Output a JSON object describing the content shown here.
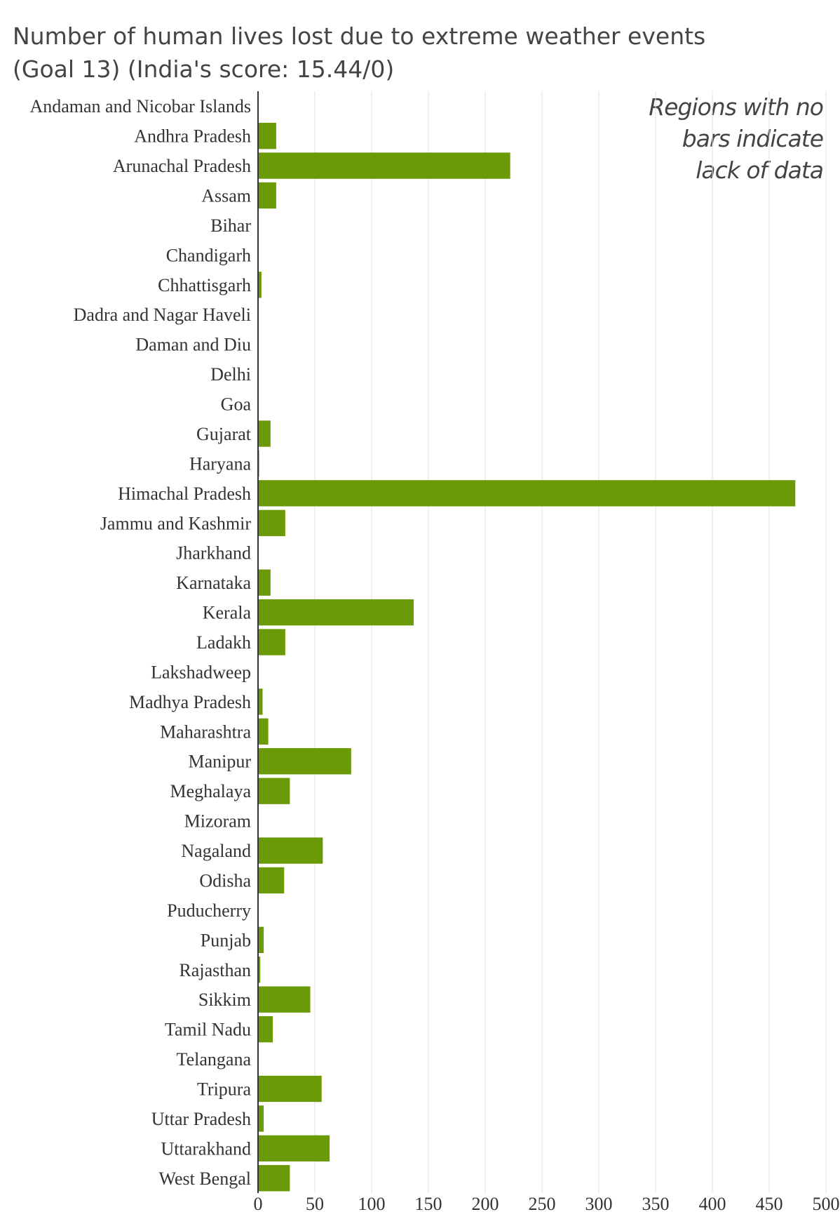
{
  "title_line1": "Number of human lives lost due to extreme weather events",
  "title_line2": "(Goal 13) (India's score: 15.44/0)",
  "note": "Regions with no bars indicate lack of data",
  "colors": {
    "bar": "#6a9a06",
    "grid": "#e0e0e0",
    "axis": "#333333"
  },
  "chart_data": {
    "type": "bar",
    "orientation": "horizontal",
    "title": "Number of human lives lost due to extreme weather events (Goal 13) (India's score: 15.44/0)",
    "xlabel": "",
    "ylabel": "",
    "xlim": [
      0,
      500
    ],
    "xticks": [
      0,
      50,
      100,
      150,
      200,
      250,
      300,
      350,
      400,
      450,
      500
    ],
    "grid": true,
    "categories": [
      "Andaman and Nicobar Islands",
      "Andhra Pradesh",
      "Arunachal Pradesh",
      "Assam",
      "Bihar",
      "Chandigarh",
      "Chhattisgarh",
      "Dadra and Nagar Haveli",
      "Daman and Diu",
      "Delhi",
      "Goa",
      "Gujarat",
      "Haryana",
      "Himachal Pradesh",
      "Jammu and Kashmir",
      "Jharkhand",
      "Karnataka",
      "Kerala",
      "Ladakh",
      "Lakshadweep",
      "Madhya Pradesh",
      "Maharashtra",
      "Manipur",
      "Meghalaya",
      "Mizoram",
      "Nagaland",
      "Odisha",
      "Puducherry",
      "Punjab",
      "Rajasthan",
      "Sikkim",
      "Tamil Nadu",
      "Telangana",
      "Tripura",
      "Uttar Pradesh",
      "Uttarakhand",
      "West Bengal"
    ],
    "values": [
      null,
      16,
      222,
      16,
      null,
      null,
      3,
      null,
      null,
      null,
      null,
      11,
      1,
      473,
      24,
      null,
      11,
      137,
      24,
      null,
      4,
      9,
      82,
      28,
      null,
      57,
      23,
      null,
      5,
      2,
      46,
      13,
      null,
      56,
      5,
      63,
      28
    ]
  }
}
